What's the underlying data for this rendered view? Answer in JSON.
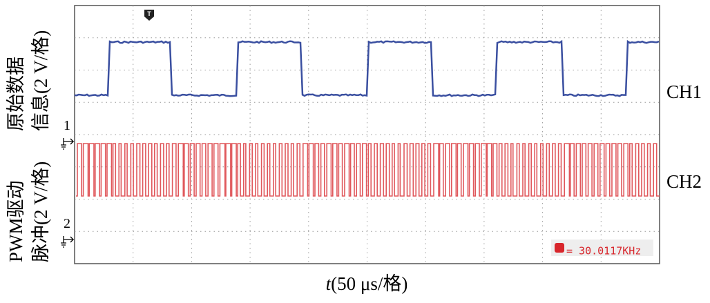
{
  "screen": {
    "trigger_marker": "T",
    "channel_markers": [
      "1",
      "2"
    ],
    "frequency_readout": "= 30.0117KHz"
  },
  "labels": {
    "ch1_axis": [
      "原始数据",
      "信息(2 V/格)"
    ],
    "ch2_axis": [
      "PWM驱动",
      "脉冲(2 V/格)"
    ],
    "ch1": "CH1",
    "ch2": "CH2",
    "x_axis_var": "t",
    "x_axis_unit": "(50 μs/格)"
  }
}
